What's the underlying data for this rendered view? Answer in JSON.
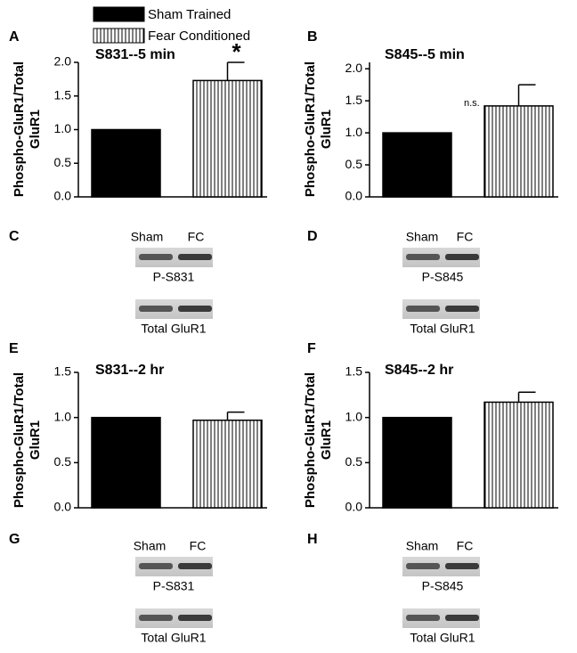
{
  "legend": [
    {
      "name": "Sham Trained",
      "color": "#000000"
    },
    {
      "name": "Fear Conditioned",
      "color": "#ffffff",
      "hatch": "vertical"
    }
  ],
  "chart_data": [
    {
      "type": "bar",
      "panel": "A",
      "title": "S831--5 min",
      "y_label": "Phospho-GluR1/Total GluR1",
      "categories": [
        null,
        null
      ],
      "values": [
        1.0,
        1.73
      ],
      "errors": [
        null,
        0.27
      ],
      "annotation": "*",
      "ylim": [
        0,
        2.0
      ],
      "yticks": [
        {
          "value": 0,
          "label": "0.0"
        },
        0.5,
        {
          "value": 1,
          "label": "1.0"
        },
        1.5,
        {
          "value": 2,
          "label": "2.0"
        }
      ]
    },
    {
      "type": "bar",
      "panel": "B",
      "title": "S845--5 min",
      "y_label": "Phospho-GluR1/Total GluR1",
      "categories": [
        null,
        null
      ],
      "values": [
        1.0,
        1.42
      ],
      "errors": [
        null,
        0.33
      ],
      "annotation": "n.s.",
      "ylim": [
        0,
        2.1
      ],
      "yticks": [
        {
          "value": 0,
          "label": "0.0"
        },
        0.5,
        {
          "value": 1,
          "label": "1.0"
        },
        1.5,
        {
          "value": 2,
          "label": "2.0"
        }
      ]
    },
    {
      "type": "bar",
      "panel": "E",
      "title": "S831--2 hr",
      "y_label": "Phospho-GluR1/Total GluR1",
      "categories": [
        null,
        null
      ],
      "values": [
        1.0,
        0.97
      ],
      "errors": [
        null,
        0.09
      ],
      "ylim": [
        0,
        1.5
      ],
      "yticks": [
        {
          "value": 0,
          "label": "0.0"
        },
        0.5,
        {
          "value": 1,
          "label": "1.0"
        },
        1.5
      ]
    },
    {
      "type": "bar",
      "panel": "F",
      "title": "S845--2 hr",
      "y_label": "Phospho-GluR1/Total GluR1",
      "categories": [
        null,
        null
      ],
      "values": [
        1.0,
        1.17
      ],
      "errors": [
        null,
        0.11
      ],
      "ylim": [
        0,
        1.5
      ],
      "yticks": [
        {
          "value": 0,
          "label": "0.0"
        },
        0.5,
        {
          "value": 1,
          "label": "1.0"
        },
        1.5
      ]
    }
  ],
  "blots": [
    {
      "panel": "C",
      "lanes": [
        "Sham",
        "FC"
      ],
      "labels": [
        "P-S831",
        "Total GluR1"
      ]
    },
    {
      "panel": "D",
      "lanes": [
        "Sham",
        "FC"
      ],
      "labels": [
        "P-S845",
        "Total GluR1"
      ]
    },
    {
      "panel": "G",
      "lanes": [
        "Sham",
        "FC"
      ],
      "labels": [
        "P-S831",
        "Total GluR1"
      ]
    },
    {
      "panel": "H",
      "lanes": [
        "Sham",
        "FC"
      ],
      "labels": [
        "P-S845",
        "Total GluR1"
      ]
    }
  ]
}
